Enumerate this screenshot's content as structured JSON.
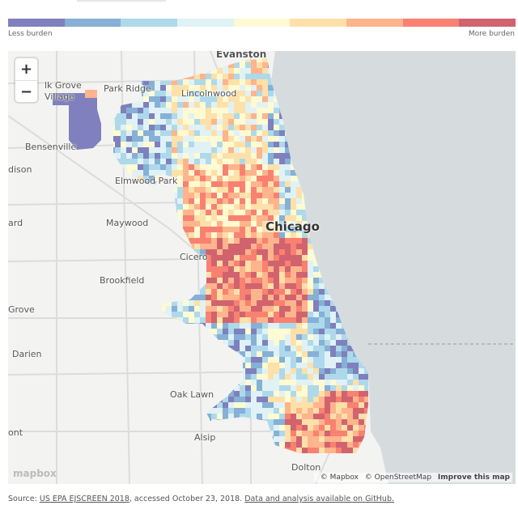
{
  "legend": {
    "colors": [
      "#7f80bd",
      "#86b0d6",
      "#aed9ea",
      "#e0f2f5",
      "#fefad2",
      "#fee0a9",
      "#feb48c",
      "#f98171",
      "#d1636f"
    ],
    "low_label": "Less burden",
    "high_label": "More burden"
  },
  "map": {
    "zoom_in": "+",
    "zoom_out": "−",
    "places": {
      "evanston": "Evanston",
      "elk_grove": "lk Grove",
      "village": "Village",
      "park_ridge": "Park Ridge",
      "lincolnwood": "Lincolnwood",
      "bensenville": "Bensenville",
      "addison": "dison",
      "elmwood_park": "Elmwood Park",
      "lombard": "ard",
      "maywood": "Maywood",
      "chicago": "Chicago",
      "cicero": "Cicero",
      "brookfield": "Brookfield",
      "grove": "Grove",
      "darien": "Darien",
      "oak_lawn": "Oak Lawn",
      "alsip": "Alsip",
      "ont": "ont",
      "dolton": "Dolton"
    },
    "logo": "mapbox",
    "attribution": {
      "mapbox": "© Mapbox",
      "osm": "© OpenStreetMap",
      "improve": "Improve this map"
    },
    "land_color": "#f3f3f1",
    "water_color": "#d6dcde"
  },
  "source": {
    "prefix": "Source: ",
    "link1": "US EPA EJSCREEN 2018",
    "middle": ", accessed October 23, 2018. ",
    "link2": "Data and analysis available on GitHub."
  }
}
